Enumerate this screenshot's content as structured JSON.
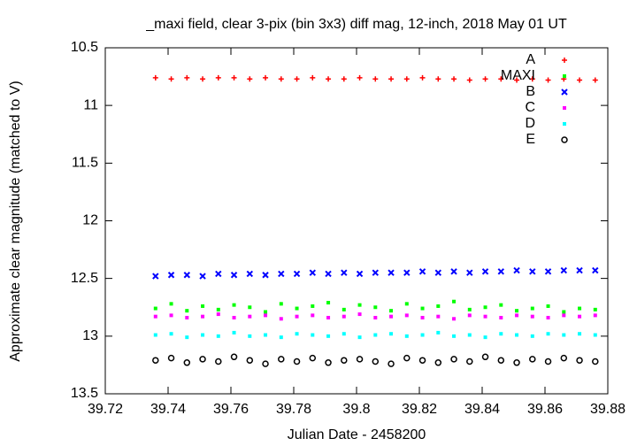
{
  "chart_data": {
    "type": "scatter",
    "title": "_maxi field, clear 3-pix (bin 3x3) diff mag, 12-inch, 2018 May 01 UT",
    "x_label": "Julian Date - 2458200",
    "y_label": "Approximate clear magnitude (matched to V)",
    "xlim": [
      39.72,
      39.88
    ],
    "ylim": [
      10.5,
      13.5
    ],
    "y_reversed": true,
    "xticks": [
      39.72,
      39.74,
      39.76,
      39.78,
      39.8,
      39.82,
      39.84,
      39.86,
      39.88
    ],
    "yticks": [
      10.5,
      11,
      11.5,
      12,
      12.5,
      13,
      13.5
    ],
    "legend": "top-right",
    "x": [
      39.736,
      39.741,
      39.746,
      39.751,
      39.756,
      39.761,
      39.766,
      39.771,
      39.776,
      39.781,
      39.786,
      39.791,
      39.796,
      39.801,
      39.806,
      39.811,
      39.816,
      39.821,
      39.826,
      39.831,
      39.836,
      39.841,
      39.846,
      39.851,
      39.856,
      39.861,
      39.866,
      39.871,
      39.876
    ],
    "series": [
      {
        "name": "A",
        "color": "#ff0000",
        "marker": "plus",
        "values": [
          10.76,
          10.77,
          10.76,
          10.77,
          10.76,
          10.76,
          10.77,
          10.76,
          10.77,
          10.77,
          10.76,
          10.77,
          10.77,
          10.76,
          10.77,
          10.77,
          10.77,
          10.76,
          10.77,
          10.77,
          10.78,
          10.77,
          10.77,
          10.78,
          10.77,
          10.78,
          10.77,
          10.78,
          10.78
        ]
      },
      {
        "name": "MAXI",
        "color": "#00ff00",
        "marker": "square",
        "values": [
          12.76,
          12.72,
          12.78,
          12.74,
          12.77,
          12.73,
          12.75,
          12.79,
          12.72,
          12.76,
          12.74,
          12.71,
          12.77,
          12.73,
          12.75,
          12.78,
          12.72,
          12.76,
          12.74,
          12.7,
          12.77,
          12.75,
          12.73,
          12.78,
          12.76,
          12.74,
          12.79,
          12.76,
          12.77
        ]
      },
      {
        "name": "B",
        "color": "#0000ff",
        "marker": "cross",
        "values": [
          12.48,
          12.47,
          12.47,
          12.48,
          12.46,
          12.47,
          12.46,
          12.47,
          12.46,
          12.46,
          12.45,
          12.46,
          12.45,
          12.46,
          12.45,
          12.45,
          12.45,
          12.44,
          12.45,
          12.44,
          12.45,
          12.44,
          12.44,
          12.43,
          12.44,
          12.44,
          12.43,
          12.43,
          12.43
        ]
      },
      {
        "name": "C",
        "color": "#ff00ff",
        "marker": "square",
        "values": [
          12.83,
          12.82,
          12.84,
          12.83,
          12.81,
          12.84,
          12.83,
          12.82,
          12.85,
          12.83,
          12.82,
          12.84,
          12.83,
          12.81,
          12.84,
          12.83,
          12.82,
          12.84,
          12.83,
          12.85,
          12.82,
          12.83,
          12.84,
          12.82,
          12.83,
          12.84,
          12.82,
          12.83,
          12.82
        ]
      },
      {
        "name": "D",
        "color": "#00ffff",
        "marker": "square",
        "values": [
          12.99,
          12.98,
          13.01,
          12.99,
          13.0,
          12.97,
          13.0,
          12.99,
          13.01,
          12.98,
          12.99,
          13.0,
          12.98,
          13.01,
          12.99,
          12.98,
          13.0,
          12.99,
          12.97,
          13.0,
          12.99,
          13.01,
          12.98,
          12.99,
          13.0,
          12.98,
          12.99,
          12.98,
          12.99
        ]
      },
      {
        "name": "E",
        "color": "#000000",
        "marker": "circle",
        "values": [
          13.21,
          13.19,
          13.23,
          13.2,
          13.22,
          13.18,
          13.21,
          13.24,
          13.2,
          13.22,
          13.19,
          13.23,
          13.21,
          13.2,
          13.22,
          13.24,
          13.19,
          13.21,
          13.23,
          13.2,
          13.22,
          13.18,
          13.21,
          13.23,
          13.2,
          13.22,
          13.19,
          13.21,
          13.22
        ]
      }
    ]
  }
}
